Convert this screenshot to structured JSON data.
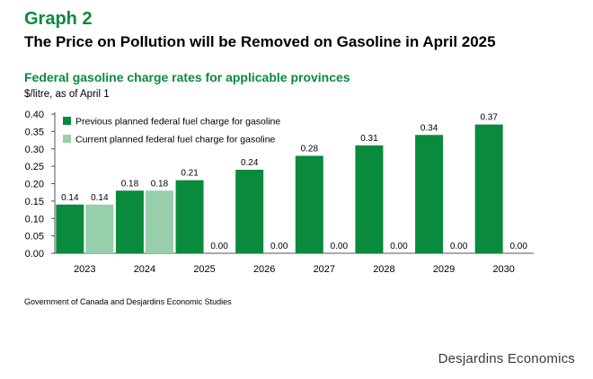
{
  "graph_label": "Graph 2",
  "headline": "The Price on Pollution will be Removed on Gasoline in April 2025",
  "source": "Government of Canada and Desjardins Economic Studies",
  "brand": "Desjardins Economics",
  "colors": {
    "accent": "#0a8a3d",
    "series_previous": "#0a8a3d",
    "series_current": "#96cfaa"
  },
  "chart_data": {
    "type": "bar",
    "title": "Federal gasoline charge rates for applicable provinces",
    "ylabel": "$/litre, as of April 1",
    "xlabel": "",
    "ylim": [
      0,
      0.4
    ],
    "yticks": [
      "0.00",
      "0.05",
      "0.10",
      "0.15",
      "0.20",
      "0.25",
      "0.30",
      "0.35",
      "0.40"
    ],
    "categories": [
      "2023",
      "2024",
      "2025",
      "2026",
      "2027",
      "2028",
      "2029",
      "2030"
    ],
    "legend_position": "top-left",
    "grid": false,
    "series": [
      {
        "name": "Previous planned federal fuel charge for gasoline",
        "color": "#0a8a3d",
        "values": [
          0.14,
          0.18,
          0.21,
          0.24,
          0.28,
          0.31,
          0.34,
          0.37
        ],
        "labels": [
          "0.14",
          "0.18",
          "0.21",
          "0.24",
          "0.28",
          "0.31",
          "0.34",
          "0.37"
        ]
      },
      {
        "name": "Current planned federal fuel charge for gasoline",
        "color": "#96cfaa",
        "values": [
          0.14,
          0.18,
          0.0,
          0.0,
          0.0,
          0.0,
          0.0,
          0.0
        ],
        "labels": [
          "0.14",
          "0.18",
          "0.00",
          "0.00",
          "0.00",
          "0.00",
          "0.00",
          "0.00"
        ]
      }
    ]
  }
}
